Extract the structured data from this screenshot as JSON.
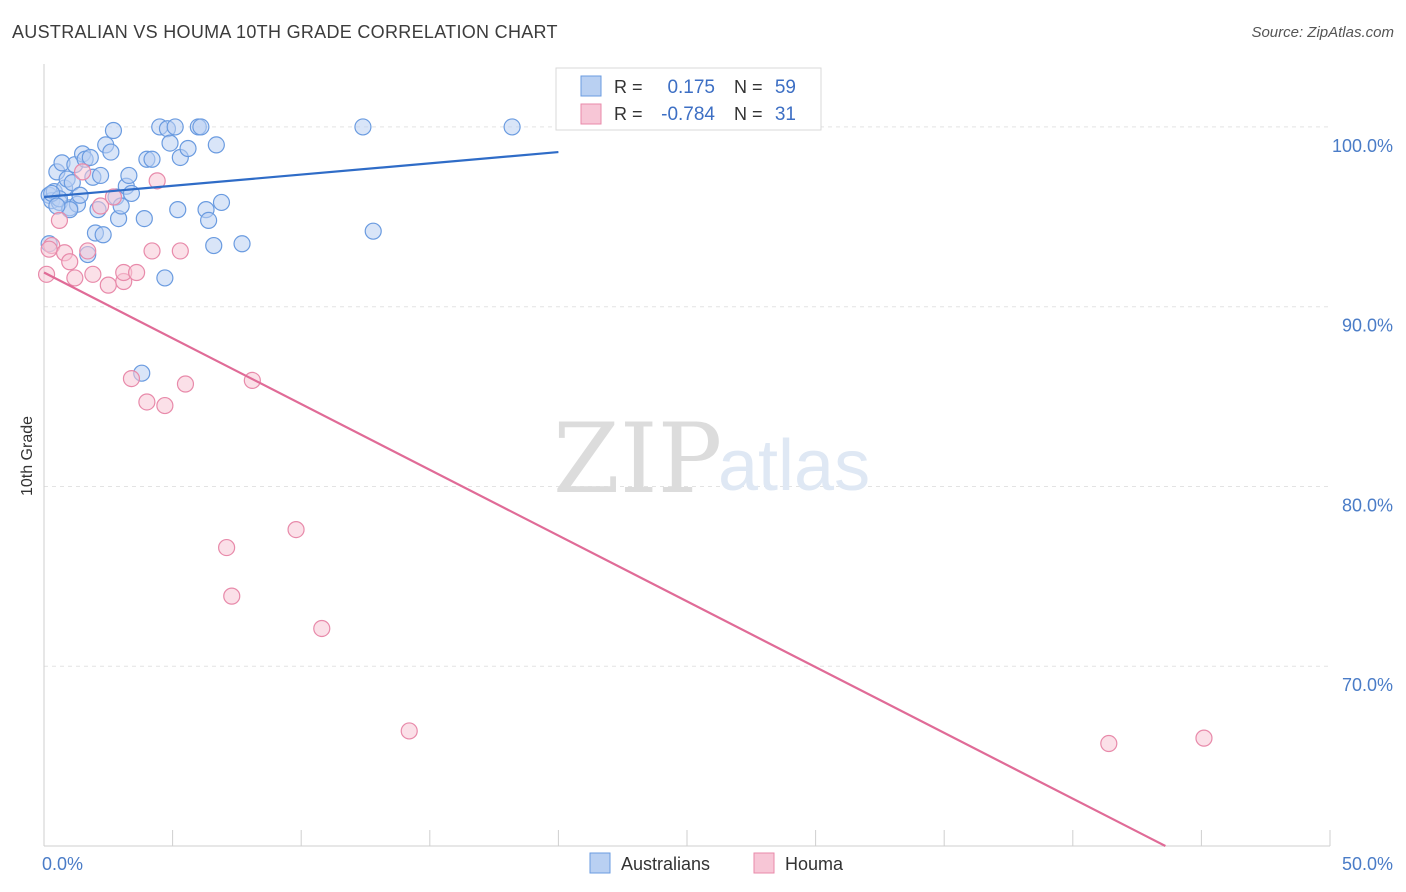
{
  "chart_data": {
    "type": "scatter",
    "title": "AUSTRALIAN VS HOUMA 10TH GRADE CORRELATION CHART",
    "source": "Source: ZipAtlas.com",
    "xlabel": "",
    "ylabel": "10th Grade",
    "xlim": [
      0,
      50
    ],
    "ylim": [
      60,
      103.5
    ],
    "x_tick_labels": [
      {
        "value": 0,
        "label": "0.0%"
      },
      {
        "value": 50,
        "label": "50.0%"
      }
    ],
    "y_tick_labels": [
      {
        "value": 100,
        "label": "100.0%"
      },
      {
        "value": 90,
        "label": "90.0%"
      },
      {
        "value": 80,
        "label": "80.0%"
      },
      {
        "value": 70,
        "label": "70.0%"
      }
    ],
    "watermark": {
      "zip": "ZIP",
      "atlas": "atlas"
    },
    "legend": {
      "r_label": "R =",
      "n_label": "N =",
      "entries": [
        {
          "r": "0.175",
          "n": "59"
        },
        {
          "r": "-0.784",
          "n": "31"
        }
      ]
    },
    "series": [
      {
        "name": "Australians",
        "color": "#6a9be0",
        "fill": "#b9d0f2",
        "trend": {
          "x": [
            0,
            20
          ],
          "y": [
            96.1,
            98.6
          ]
        },
        "points": [
          [
            0.2,
            96.2
          ],
          [
            0.3,
            95.9
          ],
          [
            0.4,
            96.4
          ],
          [
            0.5,
            97.5
          ],
          [
            0.6,
            95.8
          ],
          [
            0.7,
            98.0
          ],
          [
            0.8,
            96.6
          ],
          [
            0.9,
            97.1
          ],
          [
            1.0,
            95.5
          ],
          [
            1.1,
            96.9
          ],
          [
            1.2,
            97.9
          ],
          [
            1.3,
            95.7
          ],
          [
            1.4,
            96.2
          ],
          [
            1.5,
            98.5
          ],
          [
            1.6,
            98.2
          ],
          [
            1.7,
            92.9
          ],
          [
            1.8,
            98.3
          ],
          [
            1.9,
            97.2
          ],
          [
            2.0,
            94.1
          ],
          [
            2.1,
            95.4
          ],
          [
            2.2,
            97.3
          ],
          [
            2.3,
            94.0
          ],
          [
            2.4,
            99.0
          ],
          [
            2.6,
            98.6
          ],
          [
            2.7,
            99.8
          ],
          [
            2.8,
            96.1
          ],
          [
            2.9,
            94.9
          ],
          [
            3.0,
            95.6
          ],
          [
            3.2,
            96.7
          ],
          [
            3.3,
            97.3
          ],
          [
            3.4,
            96.3
          ],
          [
            3.9,
            94.9
          ],
          [
            4.0,
            98.2
          ],
          [
            4.2,
            98.2
          ],
          [
            4.5,
            100.0
          ],
          [
            4.7,
            91.6
          ],
          [
            4.8,
            99.9
          ],
          [
            4.9,
            99.1
          ],
          [
            5.1,
            100.0
          ],
          [
            5.2,
            95.4
          ],
          [
            5.3,
            98.3
          ],
          [
            5.6,
            98.8
          ],
          [
            6.0,
            100.0
          ],
          [
            6.1,
            100.0
          ],
          [
            6.3,
            95.4
          ],
          [
            6.4,
            94.8
          ],
          [
            6.6,
            93.4
          ],
          [
            6.7,
            99.0
          ],
          [
            6.9,
            95.8
          ],
          [
            7.7,
            93.5
          ],
          [
            12.4,
            100.0
          ],
          [
            12.8,
            94.2
          ],
          [
            18.2,
            100.0
          ],
          [
            3.8,
            86.3
          ],
          [
            0.6,
            96.0
          ],
          [
            1.0,
            95.4
          ],
          [
            0.3,
            96.3
          ],
          [
            0.5,
            95.6
          ],
          [
            0.2,
            93.5
          ]
        ]
      },
      {
        "name": "Houma",
        "color": "#e88aaa",
        "fill": "#f7c6d6",
        "trend": {
          "x": [
            0,
            43.6
          ],
          "y": [
            91.9,
            60.0
          ]
        },
        "points": [
          [
            0.1,
            91.8
          ],
          [
            0.3,
            93.4
          ],
          [
            0.6,
            94.8
          ],
          [
            0.8,
            93.0
          ],
          [
            1.0,
            92.5
          ],
          [
            1.2,
            91.6
          ],
          [
            1.5,
            97.5
          ],
          [
            1.7,
            93.1
          ],
          [
            1.9,
            91.8
          ],
          [
            2.2,
            95.6
          ],
          [
            2.5,
            91.2
          ],
          [
            2.7,
            96.1
          ],
          [
            3.1,
            91.4
          ],
          [
            3.1,
            91.9
          ],
          [
            3.4,
            86.0
          ],
          [
            3.6,
            91.9
          ],
          [
            4.0,
            84.7
          ],
          [
            4.2,
            93.1
          ],
          [
            4.4,
            97.0
          ],
          [
            4.7,
            84.5
          ],
          [
            5.3,
            93.1
          ],
          [
            5.5,
            85.7
          ],
          [
            7.1,
            76.6
          ],
          [
            7.3,
            73.9
          ],
          [
            8.1,
            85.9
          ],
          [
            9.8,
            77.6
          ],
          [
            10.8,
            72.1
          ],
          [
            14.2,
            66.4
          ],
          [
            41.4,
            65.7
          ],
          [
            45.1,
            66.0
          ],
          [
            0.2,
            93.2
          ]
        ]
      }
    ]
  }
}
